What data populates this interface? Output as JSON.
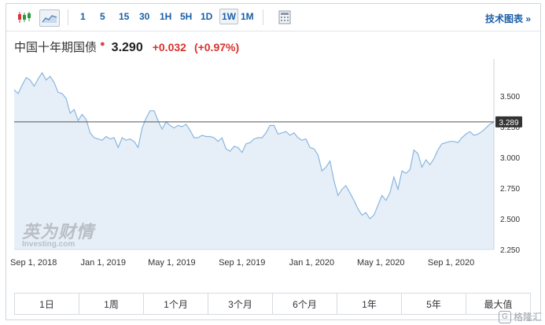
{
  "toolbar": {
    "timeframes": [
      "1",
      "5",
      "15",
      "30",
      "1H",
      "5H",
      "1D",
      "1W",
      "1M"
    ],
    "active_timeframe": "1W",
    "tech_chart_label": "技术图表 »",
    "icons": [
      "candlestick-icon",
      "area-chart-icon",
      "calculator-icon"
    ]
  },
  "instrument": {
    "name": "中国十年期国债",
    "price": "3.290",
    "change": "+0.032",
    "change_pct": "(+0.97%)",
    "up_color": "#d9322c"
  },
  "watermark": {
    "cn": "英为财情",
    "en": "Investing.com"
  },
  "chart_data": {
    "type": "area",
    "title": "",
    "xlabel": "",
    "ylabel": "",
    "x_ticks": [
      "Sep 1, 2018",
      "Jan 1, 2019",
      "May 1, 2019",
      "Sep 1, 2019",
      "Jan 1, 2020",
      "May 1, 2020",
      "Sep 1, 2020"
    ],
    "y_ticks": [
      "3.500",
      "3.250",
      "3.000",
      "2.750",
      "2.500",
      "2.250"
    ],
    "ylim": [
      2.25,
      3.75
    ],
    "xlim": [
      "2018-07-29",
      "2020-11-15"
    ],
    "grid": false,
    "current_value_label": "3.289",
    "current_value": 3.289,
    "line_color": "#8ab6de",
    "fill_color": "#e6eff8",
    "series": [
      {
        "x": [
          "2018-07-29",
          "2018-08-05",
          "2018-08-12",
          "2018-08-19",
          "2018-08-26",
          "2018-09-02",
          "2018-09-09",
          "2018-09-16",
          "2018-09-23",
          "2018-09-30",
          "2018-10-07",
          "2018-10-14",
          "2018-10-21",
          "2018-10-28",
          "2018-11-04",
          "2018-11-11",
          "2018-11-18",
          "2018-11-25",
          "2018-12-02",
          "2018-12-09",
          "2018-12-16",
          "2018-12-23",
          "2018-12-30",
          "2019-01-06",
          "2019-01-13",
          "2019-01-20",
          "2019-01-27",
          "2019-02-03",
          "2019-02-10",
          "2019-02-17",
          "2019-02-24",
          "2019-03-03",
          "2019-03-10",
          "2019-03-17",
          "2019-03-24",
          "2019-03-31",
          "2019-04-07",
          "2019-04-14",
          "2019-04-21",
          "2019-04-28",
          "2019-05-05",
          "2019-05-12",
          "2019-05-19",
          "2019-05-26",
          "2019-06-02",
          "2019-06-09",
          "2019-06-16",
          "2019-06-23",
          "2019-06-30",
          "2019-07-07",
          "2019-07-14",
          "2019-07-21",
          "2019-07-28",
          "2019-08-04",
          "2019-08-11",
          "2019-08-18",
          "2019-08-25",
          "2019-09-01",
          "2019-09-08",
          "2019-09-15",
          "2019-09-22",
          "2019-09-29",
          "2019-10-06",
          "2019-10-13",
          "2019-10-20",
          "2019-10-27",
          "2019-11-03",
          "2019-11-10",
          "2019-11-17",
          "2019-11-24",
          "2019-12-01",
          "2019-12-08",
          "2019-12-15",
          "2019-12-22",
          "2019-12-29",
          "2020-01-05",
          "2020-01-12",
          "2020-01-19",
          "2020-01-26",
          "2020-02-02",
          "2020-02-09",
          "2020-02-16",
          "2020-02-23",
          "2020-03-01",
          "2020-03-08",
          "2020-03-15",
          "2020-03-22",
          "2020-03-29",
          "2020-04-05",
          "2020-04-12",
          "2020-04-19",
          "2020-04-26",
          "2020-05-03",
          "2020-05-10",
          "2020-05-17",
          "2020-05-24",
          "2020-05-31",
          "2020-06-07",
          "2020-06-14",
          "2020-06-21",
          "2020-06-28",
          "2020-07-05",
          "2020-07-12",
          "2020-07-19",
          "2020-07-26",
          "2020-08-02",
          "2020-08-09",
          "2020-08-16",
          "2020-08-23",
          "2020-08-30",
          "2020-09-06",
          "2020-09-13",
          "2020-09-20",
          "2020-09-27",
          "2020-10-04",
          "2020-10-11",
          "2020-10-18",
          "2020-10-25",
          "2020-11-01",
          "2020-11-08",
          "2020-11-15"
        ],
        "values": [
          3.55,
          3.52,
          3.59,
          3.65,
          3.63,
          3.58,
          3.64,
          3.69,
          3.63,
          3.66,
          3.61,
          3.53,
          3.52,
          3.48,
          3.36,
          3.39,
          3.3,
          3.35,
          3.31,
          3.2,
          3.16,
          3.15,
          3.14,
          3.17,
          3.15,
          3.16,
          3.08,
          3.16,
          3.14,
          3.15,
          3.13,
          3.08,
          3.24,
          3.32,
          3.38,
          3.38,
          3.3,
          3.23,
          3.29,
          3.26,
          3.24,
          3.26,
          3.25,
          3.27,
          3.22,
          3.16,
          3.16,
          3.18,
          3.17,
          3.17,
          3.16,
          3.13,
          3.16,
          3.07,
          3.05,
          3.09,
          3.08,
          3.04,
          3.11,
          3.12,
          3.15,
          3.16,
          3.16,
          3.2,
          3.26,
          3.26,
          3.19,
          3.2,
          3.21,
          3.18,
          3.2,
          3.16,
          3.14,
          3.15,
          3.08,
          3.07,
          3.02,
          2.89,
          2.92,
          2.97,
          2.81,
          2.69,
          2.74,
          2.77,
          2.71,
          2.65,
          2.58,
          2.53,
          2.55,
          2.5,
          2.53,
          2.61,
          2.69,
          2.65,
          2.71,
          2.84,
          2.74,
          2.89,
          2.87,
          2.9,
          3.06,
          3.03,
          2.92,
          2.98,
          2.94,
          2.99,
          3.06,
          3.11,
          3.12,
          3.13,
          3.13,
          3.12,
          3.16,
          3.19,
          3.21,
          3.18,
          3.19,
          3.21,
          3.24,
          3.27,
          3.29
        ]
      }
    ]
  },
  "range_buttons": [
    "1日",
    "1周",
    "1个月",
    "3个月",
    "6个月",
    "1年",
    "5年",
    "最大值"
  ],
  "corner_badge": "格隆汇"
}
